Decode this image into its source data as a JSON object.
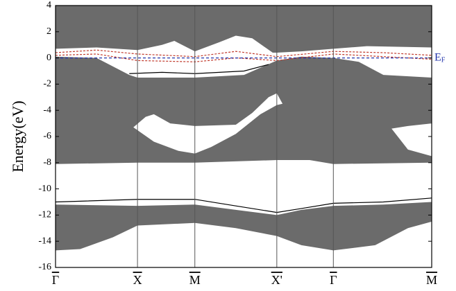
{
  "chart_data": {
    "type": "band",
    "ylabel": "Energy(eV)",
    "xlim": [
      0,
      4.59
    ],
    "ylim": [
      -16,
      4
    ],
    "yticks": [
      4,
      2,
      0,
      -2,
      -4,
      -6,
      -8,
      -10,
      -12,
      -14,
      -16
    ],
    "xticks": [
      {
        "value": 0,
        "label": "Γ"
      },
      {
        "value": 1,
        "label": "X"
      },
      {
        "value": 1.7,
        "label": "M"
      },
      {
        "value": 2.7,
        "label": "X'"
      },
      {
        "value": 3.39,
        "label": "Γ"
      },
      {
        "value": 4.59,
        "label": "M"
      }
    ],
    "fermi_level": 0,
    "fermi_label": {
      "main": "E",
      "sub": "F"
    },
    "fermi_color": "#2233aa",
    "region_color": "#6b6b6b",
    "regions": [
      {
        "rings": [
          {
            "x": [
              0,
              0.5,
              1,
              1.3,
              1.45,
              1.7,
              2.0,
              2.2,
              2.4,
              2.65,
              2.7,
              3.0,
              3.39,
              3.8,
              4.59,
              4.59,
              0
            ],
            "y": [
              0.7,
              0.8,
              0.6,
              1.0,
              1.3,
              0.5,
              1.2,
              1.7,
              1.5,
              0.4,
              0.4,
              0.5,
              0.7,
              0.9,
              0.8,
              4,
              4
            ]
          }
        ]
      },
      {
        "rings": [
          {
            "x": [
              0,
              0.5,
              0.9,
              1,
              1.7,
              2.3,
              2.7,
              3.0,
              3.39,
              3.7,
              4.0,
              4.59,
              4.59,
              3.39,
              3.1,
              2.7,
              1.7,
              1,
              0
            ],
            "y": [
              0.1,
              0,
              -1.3,
              -1.5,
              -1.5,
              -1.3,
              -0.2,
              0.1,
              0,
              -0.3,
              -1.3,
              -1.5,
              -8.0,
              -8.1,
              -7.8,
              -7.8,
              -8.0,
              -8.0,
              -8.1
            ]
          },
          {
            "x": [
              0.95,
              1.1,
              1.2,
              1.4,
              1.7,
              2.2,
              2.4,
              2.6,
              2.7,
              2.77,
              2.7,
              2.5,
              2.2,
              1.9,
              1.7,
              1.5,
              1.2
            ],
            "y": [
              -5.3,
              -4.5,
              -4.3,
              -5.0,
              -5.2,
              -5.1,
              -4.2,
              -3.0,
              -2.7,
              -3.5,
              -3.6,
              -4.3,
              -5.8,
              -6.8,
              -7.3,
              -7.1,
              -6.4
            ]
          },
          {
            "x": [
              4.1,
              4.3,
              4.59,
              4.59,
              4.3
            ],
            "y": [
              -5.4,
              -5.2,
              -5.0,
              -7.5,
              -7.0
            ]
          }
        ]
      },
      {
        "rings": [
          {
            "x": [
              0,
              1,
              1.7,
              2.2,
              2.7,
              3.0,
              3.39,
              4.0,
              4.59,
              4.59,
              4.3,
              3.9,
              3.39,
              3.0,
              2.7,
              2.2,
              1.7,
              1.0,
              0.7,
              0.3,
              0
            ],
            "y": [
              -11.2,
              -11.3,
              -11.2,
              -11.6,
              -12.0,
              -11.6,
              -11.3,
              -11.2,
              -11.0,
              -12.5,
              -13.0,
              -14.3,
              -14.7,
              -14.3,
              -13.6,
              -13.0,
              -12.6,
              -12.8,
              -13.7,
              -14.6,
              -14.7
            ]
          }
        ]
      }
    ],
    "lines": [
      {
        "color": "#c0392b",
        "dash": true,
        "x": [
          0,
          0.5,
          1,
          1.7,
          2.2,
          2.7,
          3.39,
          4.0,
          4.59
        ],
        "y": [
          0.4,
          0.6,
          0.3,
          0.1,
          0.5,
          0.1,
          0.5,
          0.4,
          0.2
        ]
      },
      {
        "color": "#c0392b",
        "dash": true,
        "x": [
          0,
          0.5,
          1,
          1.7,
          2.2,
          2.7,
          3.39,
          4.0,
          4.59
        ],
        "y": [
          0.2,
          0.3,
          -0.2,
          -0.3,
          0.0,
          -0.2,
          0.3,
          0.1,
          -0.1
        ]
      },
      {
        "color": "#000000",
        "dash": false,
        "x": [
          0.9,
          1.3,
          1.7,
          2.3,
          2.6
        ],
        "y": [
          -1.2,
          -1.1,
          -1.2,
          -1.0,
          -0.5
        ]
      },
      {
        "color": "#000000",
        "dash": false,
        "x": [
          0,
          1,
          1.7,
          2.2,
          2.7,
          3.0,
          3.39,
          4.0,
          4.59
        ],
        "y": [
          -11.0,
          -10.8,
          -10.8,
          -11.3,
          -11.8,
          -11.5,
          -11.1,
          -11.0,
          -10.7
        ]
      }
    ]
  }
}
